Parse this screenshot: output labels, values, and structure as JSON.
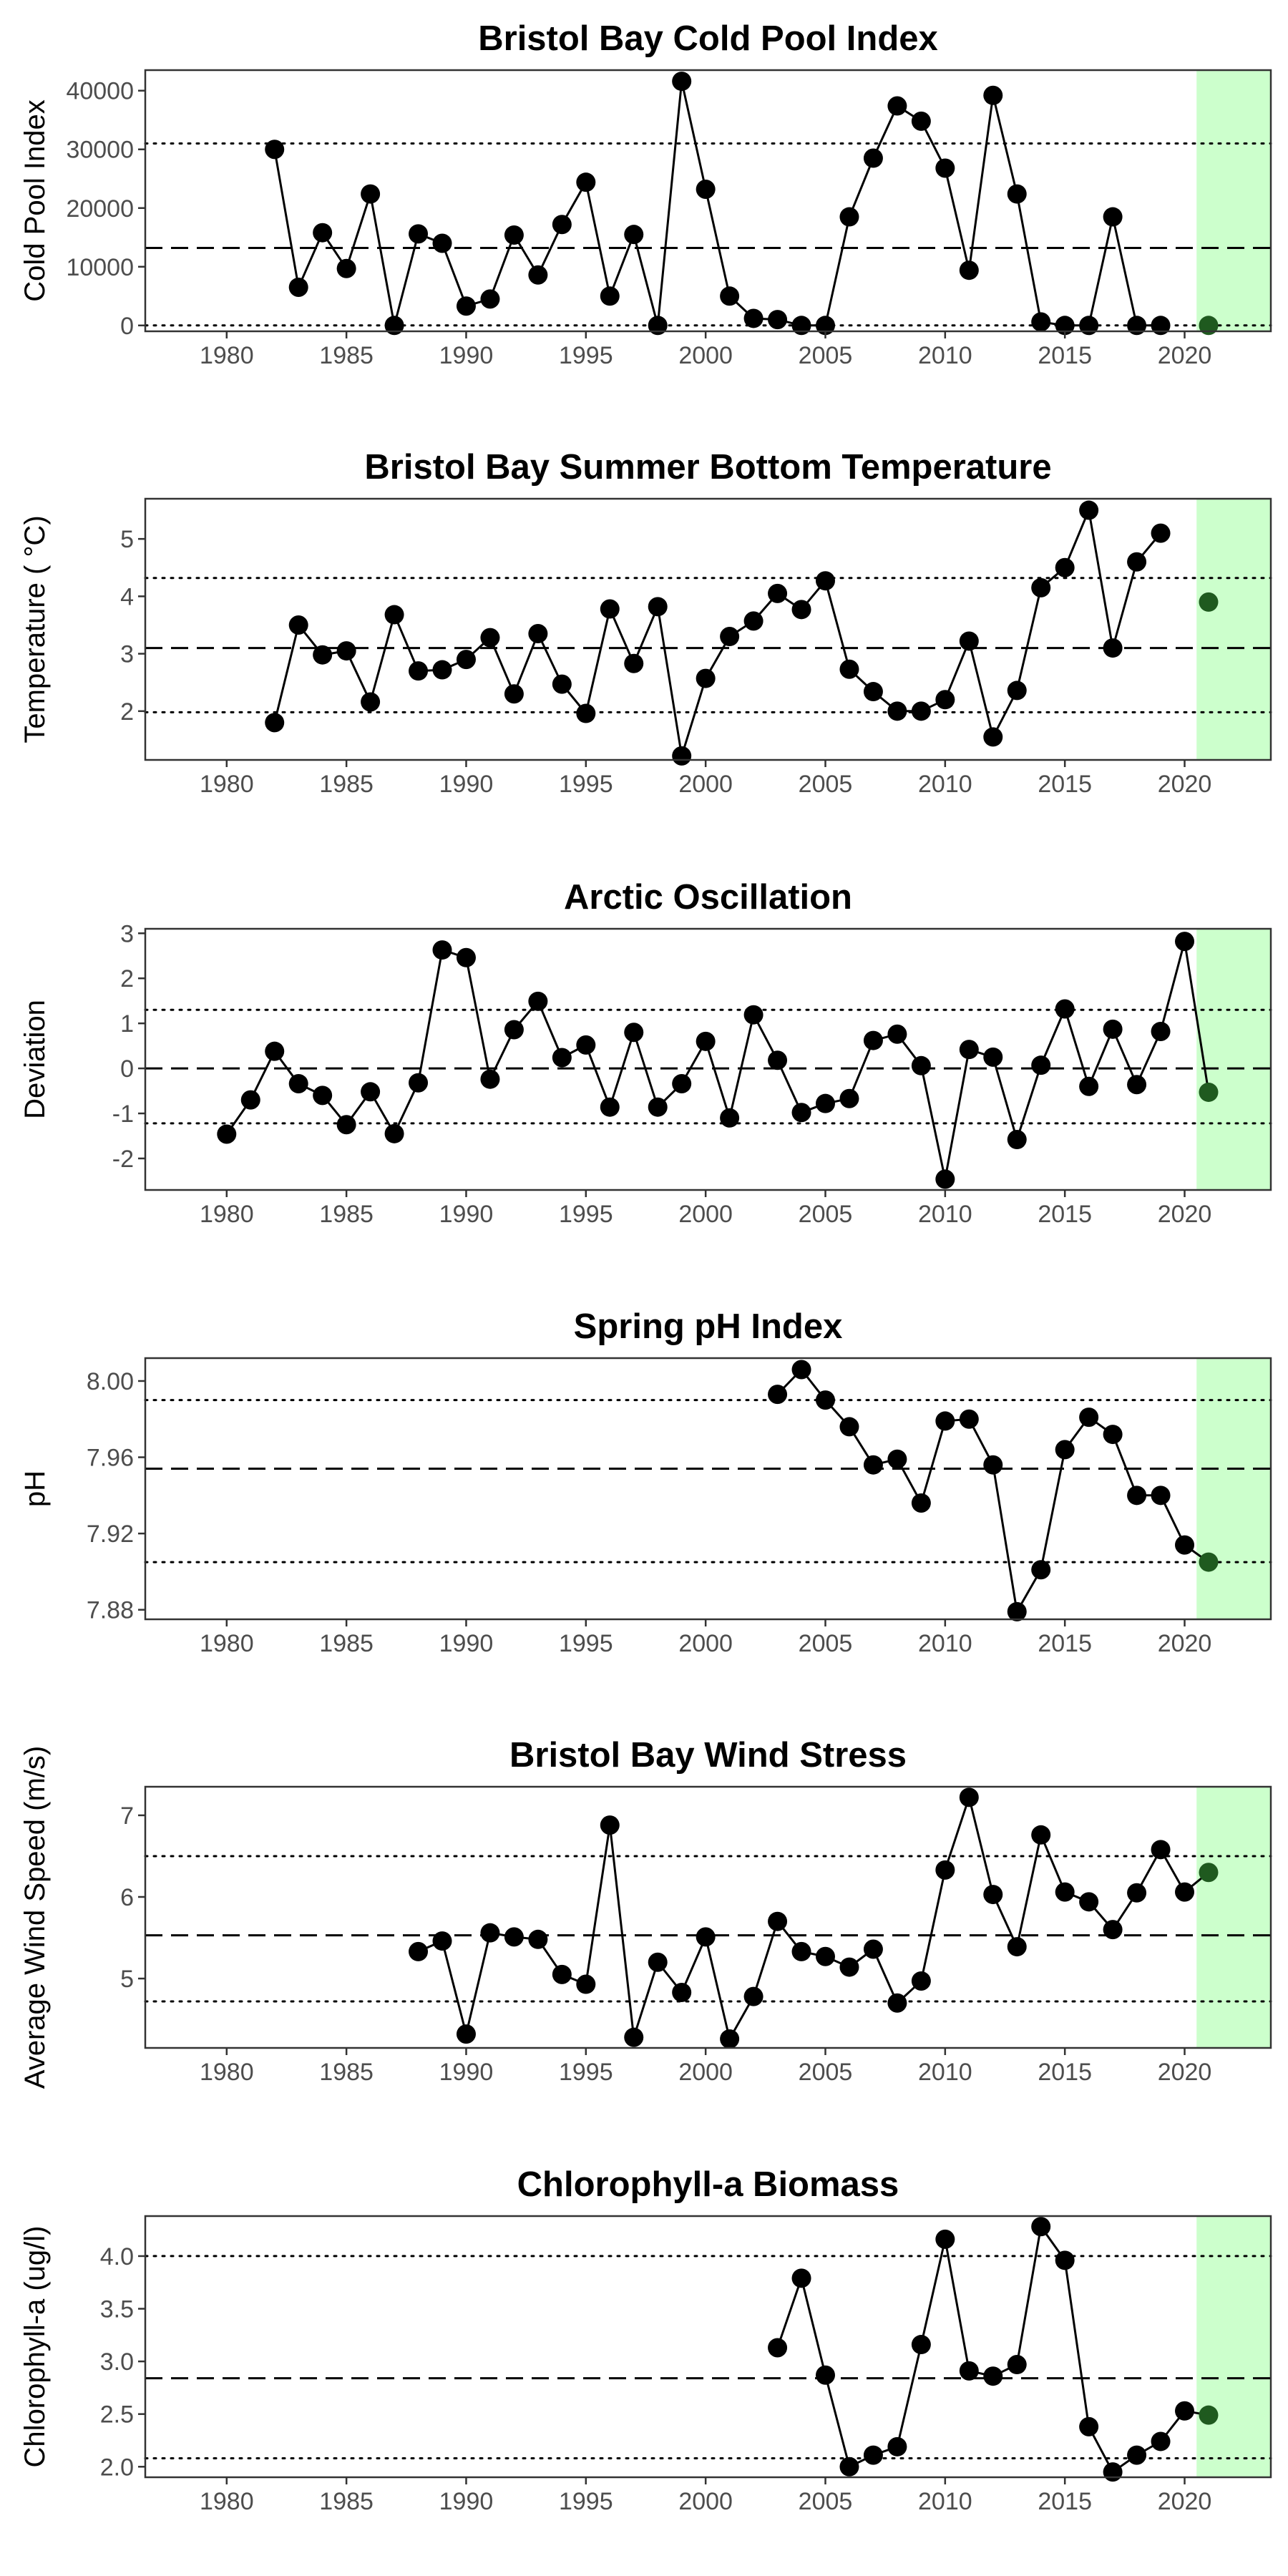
{
  "x_ticks": [
    1980,
    1985,
    1990,
    1995,
    2000,
    2005,
    2010,
    2015,
    2020
  ],
  "colors": {
    "highlight_band": "#ccffcc",
    "point": "#000000",
    "last_point": "#1f5a1f"
  },
  "chart_data": [
    {
      "type": "line",
      "title": "Bristol Bay Cold Pool Index",
      "ylabel": "Cold Pool Index",
      "yticks": [
        0,
        10000,
        20000,
        30000,
        40000
      ],
      "ylim": [
        -1000,
        43500
      ],
      "mean": 13200,
      "upper": 31000,
      "lower": 0,
      "x": [
        1982,
        1983,
        1984,
        1985,
        1986,
        1987,
        1988,
        1989,
        1990,
        1991,
        1992,
        1993,
        1994,
        1995,
        1996,
        1997,
        1998,
        1999,
        2000,
        2001,
        2002,
        2003,
        2004,
        2005,
        2006,
        2007,
        2008,
        2009,
        2010,
        2011,
        2012,
        2013,
        2014,
        2015,
        2016,
        2017,
        2018,
        2019,
        2021
      ],
      "y": [
        30000,
        6500,
        15800,
        9700,
        22400,
        0,
        15600,
        14000,
        3300,
        4500,
        15400,
        8600,
        17200,
        24400,
        5000,
        15500,
        0,
        41600,
        23200,
        5000,
        1200,
        1000,
        0,
        0,
        18500,
        28500,
        37400,
        34800,
        26800,
        9400,
        39200,
        22400,
        600,
        0,
        0,
        18500,
        0,
        0,
        0
      ]
    },
    {
      "type": "line",
      "title": "Bristol Bay Summer Bottom Temperature",
      "ylabel": "Temperature ( °C)",
      "yticks": [
        2,
        3,
        4,
        5
      ],
      "ylim": [
        1.15,
        5.7
      ],
      "mean": 3.1,
      "upper": 4.32,
      "lower": 1.98,
      "x": [
        1982,
        1983,
        1984,
        1985,
        1986,
        1987,
        1988,
        1989,
        1990,
        1991,
        1992,
        1993,
        1994,
        1995,
        1996,
        1997,
        1998,
        1999,
        2000,
        2001,
        2002,
        2003,
        2004,
        2005,
        2006,
        2007,
        2008,
        2009,
        2010,
        2011,
        2012,
        2013,
        2014,
        2015,
        2016,
        2017,
        2018,
        2019,
        2021
      ],
      "y": [
        1.8,
        3.5,
        2.98,
        3.05,
        2.16,
        3.68,
        2.7,
        2.72,
        2.9,
        3.28,
        2.3,
        3.35,
        2.47,
        1.96,
        3.78,
        2.83,
        3.82,
        1.22,
        2.57,
        3.3,
        3.57,
        4.05,
        3.77,
        4.27,
        2.73,
        2.34,
        2.0,
        2.0,
        2.2,
        3.22,
        1.55,
        2.36,
        4.15,
        4.5,
        5.5,
        3.1,
        4.6,
        5.1,
        3.9
      ]
    },
    {
      "type": "line",
      "title": "Arctic Oscillation",
      "ylabel": "Deviation",
      "yticks": [
        -2,
        -1,
        0,
        1,
        2,
        3
      ],
      "ylim": [
        -2.7,
        3.1
      ],
      "mean": 0.0,
      "upper": 1.3,
      "lower": -1.22,
      "x": [
        1980,
        1981,
        1982,
        1983,
        1984,
        1985,
        1986,
        1987,
        1988,
        1989,
        1990,
        1991,
        1992,
        1993,
        1994,
        1995,
        1996,
        1997,
        1998,
        1999,
        2000,
        2001,
        2002,
        2003,
        2004,
        2005,
        2006,
        2007,
        2008,
        2009,
        2010,
        2011,
        2012,
        2013,
        2014,
        2015,
        2016,
        2017,
        2018,
        2019,
        2020,
        2021
      ],
      "y": [
        -1.46,
        -0.7,
        0.38,
        -0.34,
        -0.6,
        -1.25,
        -0.52,
        -1.45,
        -0.32,
        2.63,
        2.46,
        -0.24,
        0.86,
        1.49,
        0.24,
        0.52,
        -0.86,
        0.8,
        -0.86,
        -0.34,
        0.6,
        -1.1,
        1.19,
        0.18,
        -0.98,
        -0.78,
        -0.67,
        0.62,
        0.76,
        0.06,
        -2.46,
        0.42,
        0.25,
        -1.58,
        0.07,
        1.32,
        -0.4,
        0.87,
        -0.36,
        0.82,
        2.82,
        -0.53
      ]
    },
    {
      "type": "line",
      "title": "Spring pH Index",
      "ylabel": "pH",
      "yticks": [
        "7.88",
        "7.92",
        "7.96",
        "8.00"
      ],
      "ylim": [
        7.875,
        8.012
      ],
      "mean": 7.954,
      "upper": 7.99,
      "lower": 7.905,
      "x": [
        2003,
        2004,
        2005,
        2006,
        2007,
        2008,
        2009,
        2010,
        2011,
        2012,
        2013,
        2014,
        2015,
        2016,
        2017,
        2018,
        2019,
        2020,
        2021
      ],
      "y": [
        7.993,
        8.006,
        7.99,
        7.976,
        7.956,
        7.959,
        7.936,
        7.979,
        7.98,
        7.956,
        7.879,
        7.901,
        7.964,
        7.981,
        7.972,
        7.94,
        7.94,
        7.914,
        7.905
      ]
    },
    {
      "type": "line",
      "title": "Bristol Bay Wind Stress",
      "ylabel": "Average Wind Speed (m/s)",
      "yticks": [
        5,
        6,
        7
      ],
      "ylim": [
        4.15,
        7.35
      ],
      "mean": 5.53,
      "upper": 6.5,
      "lower": 4.72,
      "x": [
        1988,
        1989,
        1990,
        1991,
        1992,
        1993,
        1994,
        1995,
        1996,
        1997,
        1998,
        1999,
        2000,
        2001,
        2002,
        2003,
        2004,
        2005,
        2006,
        2007,
        2008,
        2009,
        2010,
        2011,
        2012,
        2013,
        2014,
        2015,
        2016,
        2017,
        2018,
        2019,
        2020,
        2021
      ],
      "y": [
        5.33,
        5.46,
        4.32,
        5.56,
        5.51,
        5.48,
        5.05,
        4.93,
        6.88,
        4.28,
        5.2,
        4.83,
        5.51,
        4.26,
        4.78,
        5.7,
        5.33,
        5.27,
        5.14,
        5.36,
        4.7,
        4.97,
        6.33,
        7.22,
        6.03,
        5.39,
        6.76,
        6.06,
        5.94,
        5.6,
        6.05,
        6.58,
        6.06,
        6.3
      ]
    },
    {
      "type": "line",
      "title": "Chlorophyll-a Biomass",
      "ylabel": "Chlorophyll-a (ug/l)",
      "yticks": [
        "2.0",
        "2.5",
        "3.0",
        "3.5",
        "4.0"
      ],
      "ylim": [
        1.9,
        4.38
      ],
      "mean": 2.84,
      "upper": 4.0,
      "lower": 2.08,
      "x": [
        2003,
        2004,
        2005,
        2006,
        2007,
        2008,
        2009,
        2010,
        2011,
        2012,
        2013,
        2014,
        2015,
        2016,
        2017,
        2018,
        2019,
        2020,
        2021
      ],
      "y": [
        3.13,
        3.79,
        2.87,
        2.0,
        2.11,
        2.19,
        3.16,
        4.16,
        2.91,
        2.86,
        2.97,
        4.28,
        3.96,
        2.38,
        1.95,
        2.11,
        2.24,
        2.53,
        2.49
      ]
    }
  ]
}
